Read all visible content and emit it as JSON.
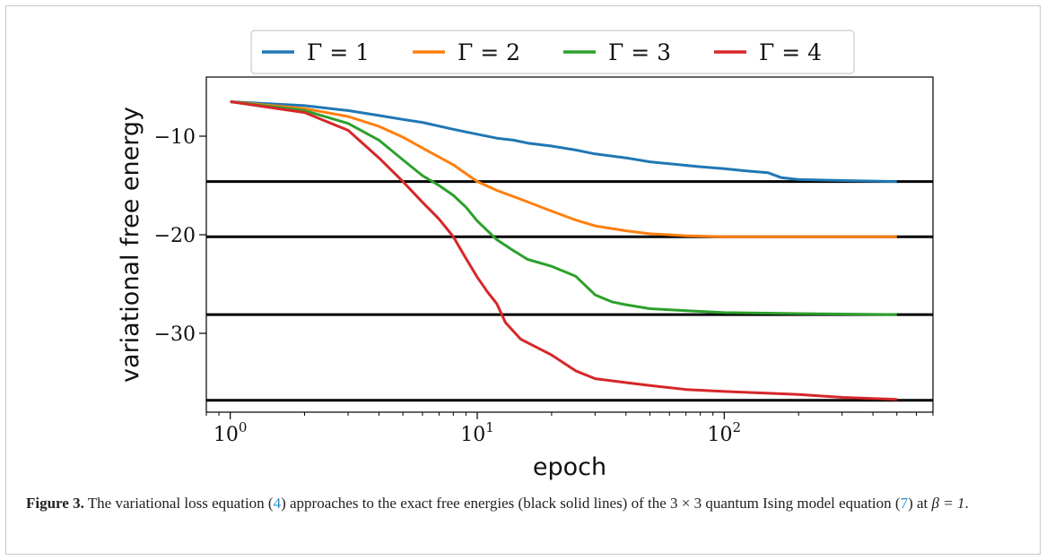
{
  "chart_data": {
    "type": "line",
    "xscale": "log",
    "xlim": [
      0.8,
      700
    ],
    "ylim": [
      -38,
      -4
    ],
    "xlabel": "epoch",
    "ylabel": "variational free energy",
    "xticks": [
      {
        "value": 1,
        "base": "10",
        "exp": "0"
      },
      {
        "value": 10,
        "base": "10",
        "exp": "1"
      },
      {
        "value": 100,
        "base": "10",
        "exp": "2"
      }
    ],
    "yticks": [
      {
        "value": -10,
        "label": "−10"
      },
      {
        "value": -20,
        "label": "−20"
      },
      {
        "value": -30,
        "label": "−30"
      }
    ],
    "legend_position": "top-center",
    "reference_lines": [
      -14.6,
      -20.2,
      -28.1,
      -36.8
    ],
    "reference_color": "#000000",
    "series": [
      {
        "name": "Γ = 1",
        "color": "#1f77b4",
        "x": [
          1,
          2,
          3,
          4,
          5,
          6,
          8,
          10,
          12,
          14,
          16,
          20,
          25,
          30,
          40,
          50,
          60,
          80,
          100,
          120,
          150,
          170,
          200,
          300,
          500
        ],
        "y": [
          -6.5,
          -6.9,
          -7.4,
          -7.9,
          -8.3,
          -8.6,
          -9.3,
          -9.8,
          -10.2,
          -10.4,
          -10.7,
          -11.0,
          -11.4,
          -11.8,
          -12.2,
          -12.6,
          -12.8,
          -13.1,
          -13.3,
          -13.5,
          -13.7,
          -14.2,
          -14.4,
          -14.5,
          -14.6
        ]
      },
      {
        "name": "Γ = 2",
        "color": "#ff7f0e",
        "x": [
          1,
          2,
          3,
          4,
          5,
          6,
          8,
          10,
          12,
          15,
          20,
          25,
          30,
          40,
          50,
          70,
          100,
          200,
          500
        ],
        "y": [
          -6.5,
          -7.2,
          -8.0,
          -9.0,
          -10.1,
          -11.2,
          -12.9,
          -14.6,
          -15.5,
          -16.4,
          -17.6,
          -18.5,
          -19.1,
          -19.6,
          -19.9,
          -20.1,
          -20.2,
          -20.2,
          -20.2
        ]
      },
      {
        "name": "Γ = 3",
        "color": "#2ca02c",
        "x": [
          1,
          2,
          3,
          4,
          5,
          6,
          7,
          8,
          9,
          10,
          12,
          14,
          16,
          20,
          25,
          30,
          35,
          40,
          50,
          70,
          100,
          200,
          500
        ],
        "y": [
          -6.5,
          -7.4,
          -8.7,
          -10.4,
          -12.4,
          -14.0,
          -15.0,
          -16.0,
          -17.2,
          -18.6,
          -20.5,
          -21.6,
          -22.5,
          -23.2,
          -24.2,
          -26.1,
          -26.8,
          -27.1,
          -27.5,
          -27.7,
          -27.9,
          -28.0,
          -28.1
        ]
      },
      {
        "name": "Γ = 4",
        "color": "#d62728",
        "x": [
          1,
          2,
          3,
          4,
          5,
          6,
          7,
          8,
          9,
          10,
          11,
          12,
          13,
          15,
          20,
          25,
          30,
          40,
          50,
          70,
          100,
          200,
          300,
          500
        ],
        "y": [
          -6.5,
          -7.6,
          -9.4,
          -12.2,
          -14.6,
          -16.7,
          -18.4,
          -20.2,
          -22.4,
          -24.3,
          -25.8,
          -27.0,
          -28.9,
          -30.6,
          -32.2,
          -33.8,
          -34.6,
          -35.0,
          -35.3,
          -35.7,
          -35.9,
          -36.2,
          -36.5,
          -36.7
        ]
      }
    ]
  },
  "caption": {
    "label": "Figure 3.",
    "text_1": " The variational loss equation (",
    "ref_1": "4",
    "text_2": ") approaches to the exact free energies (black solid lines) of the ",
    "size": "3 × 3",
    "text_3": " quantum Ising model equation (",
    "ref_2": "7",
    "text_4": ") at ",
    "beta": "β = 1",
    "text_5": "."
  }
}
